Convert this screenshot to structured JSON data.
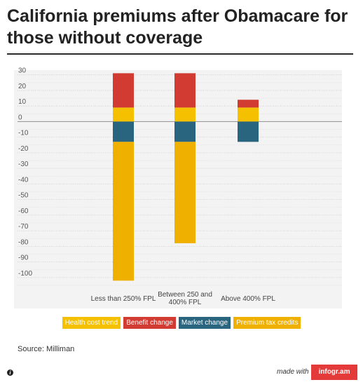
{
  "title": "California premiums after Obamacare for those without coverage",
  "source": "Source: Milliman",
  "footer": {
    "made_with": "made with",
    "brand": "infogr.am",
    "info_icon": "info-icon"
  },
  "colors": {
    "health_cost_trend": "#f4c000",
    "benefit_change": "#d23b32",
    "market_change": "#2a6580",
    "premium_tax_credits": "#f0b000",
    "plot_background": "#f3f3f3"
  },
  "chart_data": {
    "type": "bar",
    "stacked": true,
    "title": "California premiums after Obamacare for those without coverage",
    "xlabel": "",
    "ylabel": "",
    "categories": [
      "Less than 250% FPL",
      "Between 250 and 400% FPL",
      "Above 400% FPL"
    ],
    "category_lines": [
      [
        "Less than 250% FPL"
      ],
      [
        "Between 250 and",
        "400% FPL"
      ],
      [
        "Above 400% FPL"
      ]
    ],
    "series": [
      {
        "name": "Health cost trend",
        "values": [
          9,
          9,
          9
        ]
      },
      {
        "name": "Benefit change",
        "values": [
          22,
          22,
          5
        ]
      },
      {
        "name": "Market change",
        "values": [
          -13,
          -13,
          -13
        ]
      },
      {
        "name": "Premium tax credits",
        "values": [
          -89,
          -65,
          0
        ]
      }
    ],
    "ylim": [
      -105,
      33
    ],
    "yticks": [
      30,
      20,
      10,
      0,
      -10,
      -20,
      -30,
      -40,
      -50,
      -60,
      -70,
      -80,
      -90,
      -100
    ],
    "grid": true,
    "legend_position": "bottom"
  }
}
